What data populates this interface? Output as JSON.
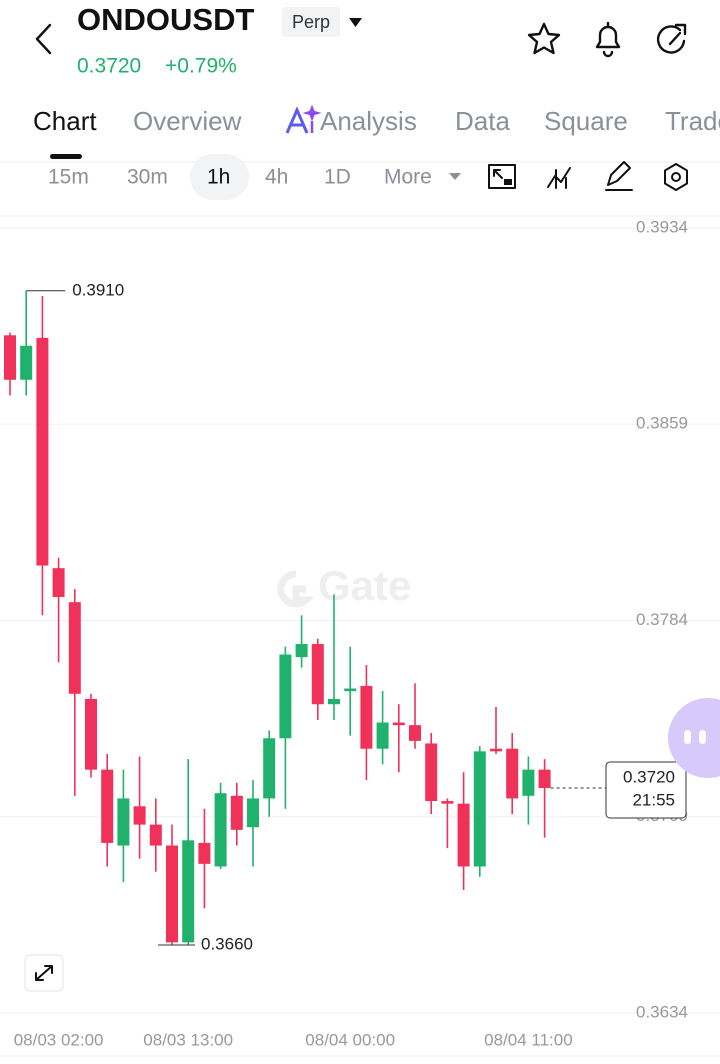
{
  "header": {
    "symbol": "ONDOUSDT",
    "badge": "Perp",
    "price": "0.3720",
    "change": "+0.79%"
  },
  "tabs": [
    "Chart",
    "Overview",
    "Analysis",
    "Data",
    "Square",
    "Trade"
  ],
  "intervals": [
    "15m",
    "30m",
    "1h",
    "4h",
    "1D",
    "More"
  ],
  "chart_data": {
    "type": "candlestick",
    "watermark": "Gate",
    "categories": [
      null,
      null,
      null,
      "08/03 02:00",
      null,
      null,
      null,
      null,
      null,
      null,
      null,
      "08/03 13:00",
      null,
      null,
      null,
      null,
      null,
      null,
      null,
      null,
      null,
      "08/04 00:00",
      null,
      null,
      null,
      null,
      null,
      null,
      null,
      null,
      null,
      null,
      "08/04 11:00",
      null
    ],
    "open": [
      0.3893,
      0.3876,
      0.3892,
      0.3804,
      0.3791,
      0.3754,
      0.3727,
      0.3698,
      0.3713,
      0.3706,
      0.3698,
      0.3661,
      0.3699,
      0.369,
      0.3717,
      0.3705,
      0.3716,
      0.3739,
      0.377,
      0.3775,
      0.3752,
      0.3757,
      0.3759,
      0.3735,
      0.3745,
      0.3744,
      0.3737,
      0.3715,
      0.3714,
      0.369,
      0.3735,
      0.3735,
      0.3717,
      0.3727
    ],
    "high": [
      0.3894,
      0.391,
      0.3908,
      0.3808,
      0.3796,
      0.3756,
      0.3733,
      0.3727,
      0.3732,
      0.3716,
      0.3706,
      0.3731,
      0.3712,
      0.3722,
      0.3722,
      0.3723,
      0.3742,
      0.3774,
      0.3786,
      0.3777,
      0.3794,
      0.3774,
      0.3767,
      0.3757,
      0.3752,
      0.376,
      0.3741,
      0.3716,
      0.3726,
      0.3736,
      0.3751,
      0.3741,
      0.3732,
      0.3731
    ],
    "low": [
      0.387,
      0.387,
      0.3786,
      0.3768,
      0.3717,
      0.3724,
      0.369,
      0.3684,
      0.3693,
      0.3688,
      0.366,
      0.366,
      0.3674,
      0.3689,
      0.3698,
      0.369,
      0.3709,
      0.3712,
      0.3766,
      0.3746,
      0.3746,
      0.374,
      0.3723,
      0.3729,
      0.3726,
      0.3735,
      0.371,
      0.3697,
      0.3681,
      0.3686,
      0.3733,
      0.371,
      0.3706,
      0.3701
    ],
    "close": [
      0.3876,
      0.3889,
      0.3805,
      0.3793,
      0.3756,
      0.3727,
      0.3699,
      0.3716,
      0.3706,
      0.3698,
      0.3661,
      0.37,
      0.3691,
      0.3718,
      0.3704,
      0.3716,
      0.3739,
      0.3771,
      0.3775,
      0.3752,
      0.3754,
      0.3758,
      0.3735,
      0.3745,
      0.3744,
      0.3738,
      0.3715,
      0.3714,
      0.369,
      0.3734,
      0.3734,
      0.3716,
      0.3727,
      0.372
    ],
    "up_color": "#20b26c",
    "down_color": "#f0325a",
    "ylim": [
      0.3634,
      0.3934
    ],
    "yticks": [
      0.3634,
      0.3709,
      0.3784,
      0.3859,
      0.3934
    ],
    "grid": true,
    "high_label": {
      "value": 0.391,
      "label": "0.3910"
    },
    "low_label": {
      "value": 0.366,
      "label": "0.3660"
    },
    "last_price": {
      "value": 0.372,
      "label": "0.3720"
    },
    "countdown": "21:55"
  }
}
